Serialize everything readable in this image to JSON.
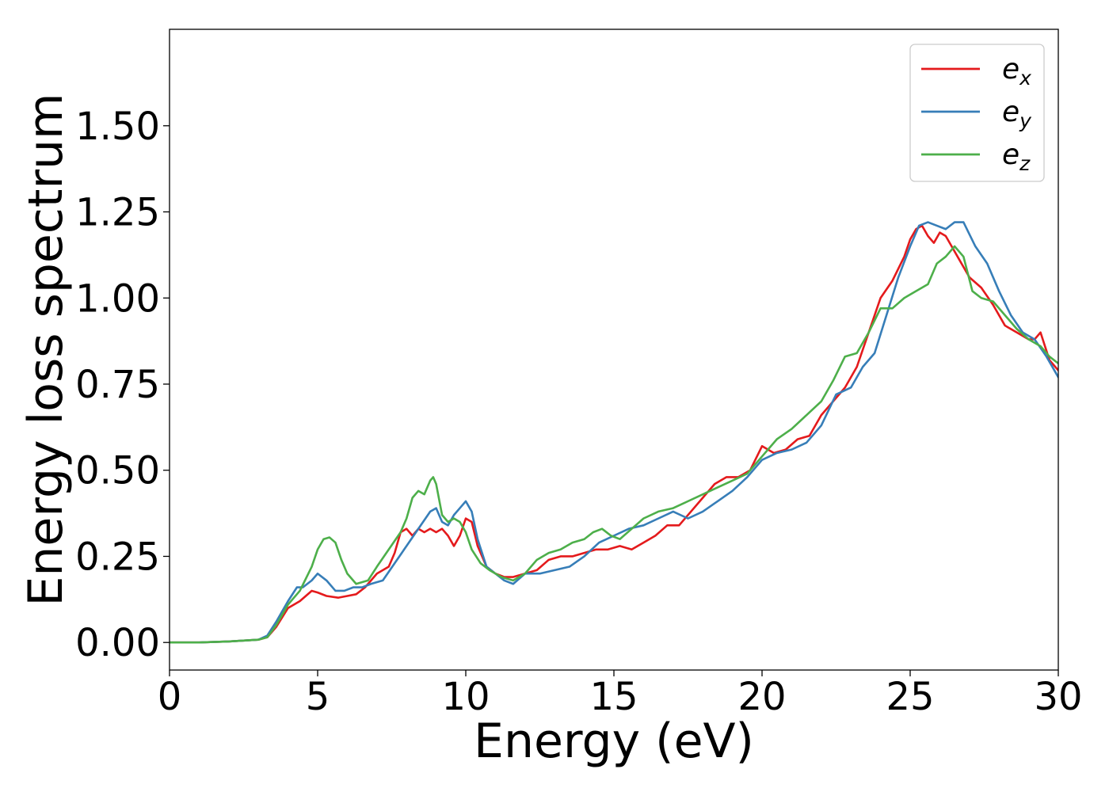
{
  "chart_data": {
    "type": "line",
    "title": "",
    "xlabel": "Energy (eV)",
    "ylabel": "Energy loss spectrum",
    "xlim": [
      0,
      30
    ],
    "ylim": [
      -0.08,
      1.78
    ],
    "xticks": [
      0,
      5,
      10,
      15,
      20,
      25,
      30
    ],
    "xtick_labels": [
      "0",
      "5",
      "10",
      "15",
      "20",
      "25",
      "30"
    ],
    "yticks": [
      0,
      0.25,
      0.5,
      0.75,
      1.0,
      1.25,
      1.5
    ],
    "ytick_labels": [
      "0.00",
      "0.25",
      "0.50",
      "0.75",
      "1.00",
      "1.25",
      "1.50"
    ],
    "grid": false,
    "legend_position": "top-right",
    "series": [
      {
        "name": "e_x",
        "legend_base": "e",
        "legend_sub": "x",
        "color": "#e41a1c",
        "x": [
          0,
          1,
          2,
          3,
          3.3,
          3.6,
          4.0,
          4.4,
          4.8,
          5.0,
          5.3,
          5.7,
          6.0,
          6.3,
          6.6,
          7.0,
          7.4,
          7.6,
          7.8,
          8.0,
          8.2,
          8.4,
          8.6,
          8.8,
          9.0,
          9.2,
          9.4,
          9.6,
          9.8,
          10.0,
          10.2,
          10.4,
          10.7,
          11.0,
          11.3,
          11.6,
          12.0,
          12.4,
          12.8,
          13.2,
          13.6,
          14.0,
          14.4,
          14.8,
          15.2,
          15.6,
          16.0,
          16.4,
          16.8,
          17.2,
          17.6,
          18.0,
          18.4,
          18.8,
          19.2,
          19.6,
          20.0,
          20.4,
          20.8,
          21.2,
          21.6,
          22.0,
          22.4,
          22.8,
          23.2,
          23.6,
          24.0,
          24.4,
          24.8,
          25.0,
          25.2,
          25.4,
          25.6,
          25.8,
          26.0,
          26.2,
          26.4,
          26.6,
          27.0,
          27.4,
          27.8,
          28.2,
          28.6,
          29.0,
          29.2,
          29.4,
          29.7,
          30.0
        ],
        "y": [
          0.0,
          0.0,
          0.003,
          0.008,
          0.015,
          0.045,
          0.1,
          0.12,
          0.15,
          0.145,
          0.135,
          0.13,
          0.135,
          0.14,
          0.16,
          0.2,
          0.22,
          0.26,
          0.32,
          0.33,
          0.31,
          0.33,
          0.32,
          0.33,
          0.32,
          0.33,
          0.31,
          0.28,
          0.31,
          0.36,
          0.35,
          0.28,
          0.22,
          0.2,
          0.19,
          0.19,
          0.2,
          0.21,
          0.24,
          0.25,
          0.25,
          0.26,
          0.27,
          0.27,
          0.28,
          0.27,
          0.29,
          0.31,
          0.34,
          0.34,
          0.38,
          0.42,
          0.46,
          0.48,
          0.48,
          0.5,
          0.57,
          0.55,
          0.56,
          0.59,
          0.6,
          0.66,
          0.7,
          0.74,
          0.8,
          0.9,
          1.0,
          1.05,
          1.12,
          1.17,
          1.2,
          1.21,
          1.18,
          1.16,
          1.19,
          1.18,
          1.15,
          1.12,
          1.06,
          1.03,
          0.98,
          0.92,
          0.9,
          0.88,
          0.88,
          0.9,
          0.82,
          0.79
        ]
      },
      {
        "name": "e_y",
        "legend_base": "e",
        "legend_sub": "y",
        "color": "#377eb8",
        "x": [
          0,
          1,
          2,
          3,
          3.3,
          3.6,
          4.0,
          4.3,
          4.5,
          4.8,
          5.0,
          5.3,
          5.6,
          5.9,
          6.2,
          6.5,
          6.8,
          7.2,
          7.6,
          8.0,
          8.4,
          8.8,
          9.0,
          9.2,
          9.4,
          9.6,
          9.8,
          10.0,
          10.2,
          10.4,
          10.7,
          11.0,
          11.3,
          11.6,
          12.0,
          12.5,
          13.0,
          13.5,
          14.0,
          14.5,
          15.0,
          15.5,
          16.0,
          16.5,
          17.0,
          17.5,
          18.0,
          18.5,
          19.0,
          19.5,
          20.0,
          20.5,
          21.0,
          21.5,
          22.0,
          22.5,
          23.0,
          23.4,
          23.8,
          24.2,
          24.6,
          25.0,
          25.3,
          25.6,
          25.9,
          26.2,
          26.5,
          26.8,
          27.2,
          27.6,
          28.0,
          28.4,
          28.8,
          29.2,
          29.6,
          30.0
        ],
        "y": [
          0.0,
          0.0,
          0.003,
          0.008,
          0.02,
          0.06,
          0.12,
          0.16,
          0.16,
          0.18,
          0.2,
          0.18,
          0.15,
          0.15,
          0.16,
          0.16,
          0.17,
          0.18,
          0.23,
          0.28,
          0.33,
          0.38,
          0.39,
          0.35,
          0.34,
          0.37,
          0.39,
          0.41,
          0.38,
          0.3,
          0.22,
          0.2,
          0.18,
          0.17,
          0.2,
          0.2,
          0.21,
          0.22,
          0.25,
          0.29,
          0.31,
          0.33,
          0.34,
          0.36,
          0.38,
          0.36,
          0.38,
          0.41,
          0.44,
          0.48,
          0.53,
          0.55,
          0.56,
          0.58,
          0.63,
          0.72,
          0.74,
          0.8,
          0.84,
          0.95,
          1.06,
          1.15,
          1.21,
          1.22,
          1.21,
          1.2,
          1.22,
          1.22,
          1.15,
          1.1,
          1.02,
          0.95,
          0.9,
          0.88,
          0.83,
          0.77
        ]
      },
      {
        "name": "e_z",
        "legend_base": "e",
        "legend_sub": "z",
        "color": "#4daf4a",
        "x": [
          0,
          1,
          2,
          3,
          3.3,
          3.6,
          4.0,
          4.4,
          4.8,
          5.0,
          5.2,
          5.4,
          5.6,
          5.8,
          6.0,
          6.3,
          6.7,
          7.0,
          7.4,
          7.8,
          8.0,
          8.2,
          8.4,
          8.6,
          8.8,
          8.9,
          9.0,
          9.2,
          9.4,
          9.6,
          9.8,
          10.0,
          10.2,
          10.5,
          10.8,
          11.2,
          11.6,
          12.0,
          12.4,
          12.8,
          13.2,
          13.6,
          14.0,
          14.3,
          14.6,
          14.9,
          15.2,
          15.6,
          16.0,
          16.5,
          17.0,
          17.5,
          18.0,
          18.5,
          19.0,
          19.5,
          20.0,
          20.5,
          21.0,
          21.5,
          22.0,
          22.4,
          22.8,
          23.2,
          23.6,
          24.0,
          24.4,
          24.8,
          25.2,
          25.6,
          25.9,
          26.2,
          26.5,
          26.8,
          27.1,
          27.4,
          27.8,
          28.2,
          28.6,
          29.0,
          29.4,
          29.7,
          30.0
        ],
        "y": [
          0.0,
          0.0,
          0.003,
          0.008,
          0.015,
          0.05,
          0.11,
          0.15,
          0.22,
          0.27,
          0.3,
          0.305,
          0.29,
          0.24,
          0.2,
          0.17,
          0.18,
          0.22,
          0.27,
          0.32,
          0.36,
          0.42,
          0.44,
          0.43,
          0.47,
          0.48,
          0.46,
          0.37,
          0.35,
          0.36,
          0.35,
          0.32,
          0.27,
          0.23,
          0.21,
          0.19,
          0.18,
          0.2,
          0.24,
          0.26,
          0.27,
          0.29,
          0.3,
          0.32,
          0.33,
          0.31,
          0.3,
          0.33,
          0.36,
          0.38,
          0.39,
          0.41,
          0.43,
          0.45,
          0.47,
          0.49,
          0.54,
          0.59,
          0.62,
          0.66,
          0.7,
          0.76,
          0.83,
          0.84,
          0.9,
          0.97,
          0.97,
          1.0,
          1.02,
          1.04,
          1.1,
          1.12,
          1.15,
          1.12,
          1.02,
          1.0,
          0.99,
          0.95,
          0.91,
          0.88,
          0.86,
          0.83,
          0.81
        ]
      }
    ]
  }
}
